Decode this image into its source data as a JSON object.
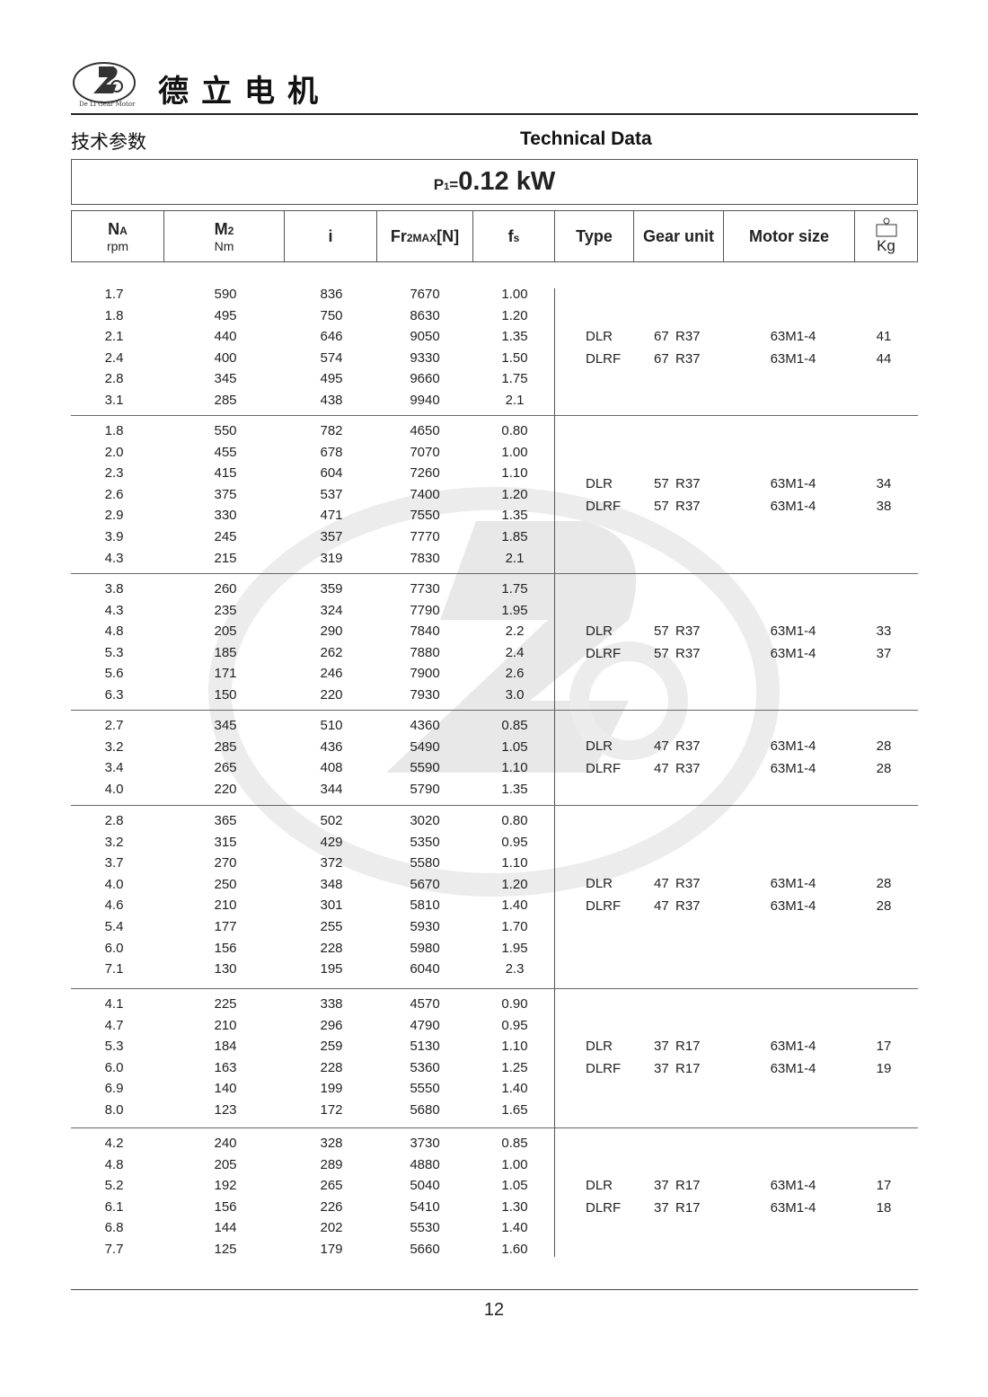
{
  "header": {
    "brand_cn": "德立电机",
    "logo_text": "De Li Gear Motor",
    "title_cn": "技术参数",
    "title_en": "Technical Data"
  },
  "power": {
    "prefix": "P",
    "prefix_sub": "1",
    "eq": "=",
    "value": "0.12 kW"
  },
  "columns": [
    {
      "label": "N",
      "sub": "A",
      "unit": "rpm"
    },
    {
      "label": "M",
      "sub": "2",
      "unit": "Nm"
    },
    {
      "label": "i"
    },
    {
      "label": "Fr",
      "sub": "2MAX",
      "suffix": "[N]"
    },
    {
      "label": "f",
      "sub": "s"
    },
    {
      "label": "Type"
    },
    {
      "label": "Gear unit"
    },
    {
      "label": "Motor size"
    },
    {
      "label": "Kg",
      "icon": "weight-icon"
    }
  ],
  "groups": [
    {
      "rows": [
        [
          "1.7",
          "590",
          "836",
          "7670",
          "1.00"
        ],
        [
          "1.8",
          "495",
          "750",
          "8630",
          "1.20"
        ],
        [
          "2.1",
          "440",
          "646",
          "9050",
          "1.35"
        ],
        [
          "2.4",
          "400",
          "574",
          "9330",
          "1.50"
        ],
        [
          "2.8",
          "345",
          "495",
          "9660",
          "1.75"
        ],
        [
          "3.1",
          "285",
          "438",
          "9940",
          "2.1"
        ]
      ],
      "models": [
        {
          "type": "DLR",
          "size": "67",
          "r": "R37",
          "motor": "63M1-4",
          "kg": "41"
        },
        {
          "type": "DLRF",
          "size": "67",
          "r": "R37",
          "motor": "63M1-4",
          "kg": "44"
        }
      ]
    },
    {
      "rows": [
        [
          "1.8",
          "550",
          "782",
          "4650",
          "0.80"
        ],
        [
          "2.0",
          "455",
          "678",
          "7070",
          "1.00"
        ],
        [
          "2.3",
          "415",
          "604",
          "7260",
          "1.10"
        ],
        [
          "2.6",
          "375",
          "537",
          "7400",
          "1.20"
        ],
        [
          "2.9",
          "330",
          "471",
          "7550",
          "1.35"
        ],
        [
          "3.9",
          "245",
          "357",
          "7770",
          "1.85"
        ],
        [
          "4.3",
          "215",
          "319",
          "7830",
          "2.1"
        ]
      ],
      "models": [
        {
          "type": "DLR",
          "size": "57",
          "r": "R37",
          "motor": "63M1-4",
          "kg": "34"
        },
        {
          "type": "DLRF",
          "size": "57",
          "r": "R37",
          "motor": "63M1-4",
          "kg": "38"
        }
      ]
    },
    {
      "rows": [
        [
          "3.8",
          "260",
          "359",
          "7730",
          "1.75"
        ],
        [
          "4.3",
          "235",
          "324",
          "7790",
          "1.95"
        ],
        [
          "4.8",
          "205",
          "290",
          "7840",
          "2.2"
        ],
        [
          "5.3",
          "185",
          "262",
          "7880",
          "2.4"
        ],
        [
          "5.6",
          "171",
          "246",
          "7900",
          "2.6"
        ],
        [
          "6.3",
          "150",
          "220",
          "7930",
          "3.0"
        ]
      ],
      "models": [
        {
          "type": "DLR",
          "size": "57",
          "r": "R37",
          "motor": "63M1-4",
          "kg": "33"
        },
        {
          "type": "DLRF",
          "size": "57",
          "r": "R37",
          "motor": "63M1-4",
          "kg": "37"
        }
      ]
    },
    {
      "rows": [
        [
          "2.7",
          "345",
          "510",
          "4360",
          "0.85"
        ],
        [
          "3.2",
          "285",
          "436",
          "5490",
          "1.05"
        ],
        [
          "3.4",
          "265",
          "408",
          "5590",
          "1.10"
        ],
        [
          "4.0",
          "220",
          "344",
          "5790",
          "1.35"
        ]
      ],
      "models": [
        {
          "type": "DLR",
          "size": "47",
          "r": "R37",
          "motor": "63M1-4",
          "kg": "28"
        },
        {
          "type": "DLRF",
          "size": "47",
          "r": "R37",
          "motor": "63M1-4",
          "kg": "28"
        }
      ]
    },
    {
      "rows": [
        [
          "2.8",
          "365",
          "502",
          "3020",
          "0.80"
        ],
        [
          "3.2",
          "315",
          "429",
          "5350",
          "0.95"
        ],
        [
          "3.7",
          "270",
          "372",
          "5580",
          "1.10"
        ],
        [
          "4.0",
          "250",
          "348",
          "5670",
          "1.20"
        ],
        [
          "4.6",
          "210",
          "301",
          "5810",
          "1.40"
        ],
        [
          "5.4",
          "177",
          "255",
          "5930",
          "1.70"
        ],
        [
          "6.0",
          "156",
          "228",
          "5980",
          "1.95"
        ],
        [
          "7.1",
          "130",
          "195",
          "6040",
          "2.3"
        ]
      ],
      "models": [
        {
          "type": "DLR",
          "size": "47",
          "r": "R37",
          "motor": "63M1-4",
          "kg": "28"
        },
        {
          "type": "DLRF",
          "size": "47",
          "r": "R37",
          "motor": "63M1-4",
          "kg": "28"
        }
      ]
    },
    {
      "rows": [
        [
          "4.1",
          "225",
          "338",
          "4570",
          "0.90"
        ],
        [
          "4.7",
          "210",
          "296",
          "4790",
          "0.95"
        ],
        [
          "5.3",
          "184",
          "259",
          "5130",
          "1.10"
        ],
        [
          "6.0",
          "163",
          "228",
          "5360",
          "1.25"
        ],
        [
          "6.9",
          "140",
          "199",
          "5550",
          "1.40"
        ],
        [
          "8.0",
          "123",
          "172",
          "5680",
          "1.65"
        ]
      ],
      "models": [
        {
          "type": "DLR",
          "size": "37",
          "r": "R17",
          "motor": "63M1-4",
          "kg": "17"
        },
        {
          "type": "DLRF",
          "size": "37",
          "r": "R17",
          "motor": "63M1-4",
          "kg": "19"
        }
      ]
    },
    {
      "rows": [
        [
          "4.2",
          "240",
          "328",
          "3730",
          "0.85"
        ],
        [
          "4.8",
          "205",
          "289",
          "4880",
          "1.00"
        ],
        [
          "5.2",
          "192",
          "265",
          "5040",
          "1.05"
        ],
        [
          "6.1",
          "156",
          "226",
          "5410",
          "1.30"
        ],
        [
          "6.8",
          "144",
          "202",
          "5530",
          "1.40"
        ],
        [
          "7.7",
          "125",
          "179",
          "5660",
          "1.60"
        ]
      ],
      "models": [
        {
          "type": "DLR",
          "size": "37",
          "r": "R17",
          "motor": "63M1-4",
          "kg": "17"
        },
        {
          "type": "DLRF",
          "size": "37",
          "r": "R17",
          "motor": "63M1-4",
          "kg": "18"
        }
      ]
    }
  ],
  "watermark": {
    "text": "De Li Gear Motor",
    "color": "#e6e6e6"
  },
  "footer": {
    "page_number": "12"
  }
}
